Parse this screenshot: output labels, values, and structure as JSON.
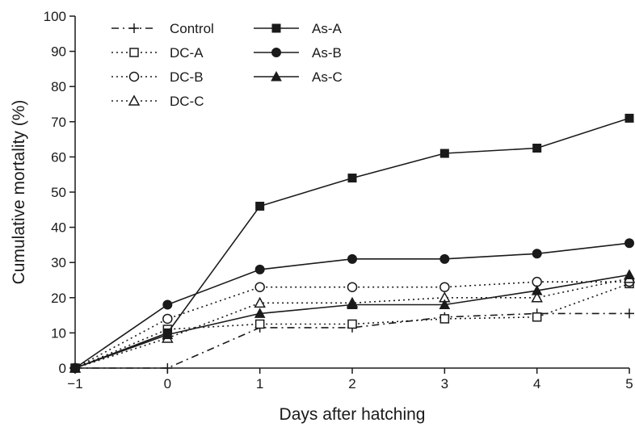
{
  "chart_data": {
    "type": "line",
    "title": "",
    "xlabel": "Days after hatching",
    "ylabel": "Cumulative mortality (%)",
    "xlim": [
      -1,
      5
    ],
    "ylim": [
      0,
      100
    ],
    "x_ticks": [
      "−1",
      "0",
      "1",
      "2",
      "3",
      "4",
      "5"
    ],
    "y_ticks": [
      "0",
      "10",
      "20",
      "30",
      "40",
      "50",
      "60",
      "70",
      "80",
      "90",
      "100"
    ],
    "grid": false,
    "legend_position": "top-left",
    "series": [
      {
        "name": "Control",
        "marker": "plus",
        "dash": "dashdot",
        "x": [
          -1,
          0,
          1,
          2,
          3,
          4,
          5
        ],
        "y": [
          0,
          0,
          11.5,
          11.5,
          14.5,
          15.5,
          15.5
        ]
      },
      {
        "name": "DC-A",
        "marker": "open-square",
        "dash": "dotted",
        "x": [
          -1,
          0,
          1,
          2,
          3,
          4,
          5
        ],
        "y": [
          0,
          11,
          12.5,
          12.5,
          14,
          14.5,
          24
        ]
      },
      {
        "name": "DC-B",
        "marker": "open-circle",
        "dash": "dotted",
        "x": [
          -1,
          0,
          1,
          2,
          3,
          4,
          5
        ],
        "y": [
          0,
          14,
          23,
          23,
          23,
          24.5,
          24.5
        ]
      },
      {
        "name": "DC-C",
        "marker": "open-triangle",
        "dash": "dotted",
        "x": [
          -1,
          0,
          1,
          2,
          3,
          4,
          5
        ],
        "y": [
          0,
          8.5,
          18.5,
          18.5,
          20,
          20,
          25.5
        ]
      },
      {
        "name": "As-A",
        "marker": "filled-square",
        "dash": "solid",
        "x": [
          -1,
          0,
          1,
          2,
          3,
          4,
          5
        ],
        "y": [
          0,
          10,
          46,
          54,
          61,
          62.5,
          71
        ]
      },
      {
        "name": "As-B",
        "marker": "filled-circle",
        "dash": "solid",
        "x": [
          -1,
          0,
          1,
          2,
          3,
          4,
          5
        ],
        "y": [
          0,
          18,
          28,
          31,
          31,
          32.5,
          35.5
        ]
      },
      {
        "name": "As-C",
        "marker": "filled-triangle",
        "dash": "solid",
        "x": [
          -1,
          0,
          1,
          2,
          3,
          4,
          5
        ],
        "y": [
          0,
          9.5,
          15.5,
          18,
          18,
          22,
          26.5
        ]
      }
    ]
  }
}
